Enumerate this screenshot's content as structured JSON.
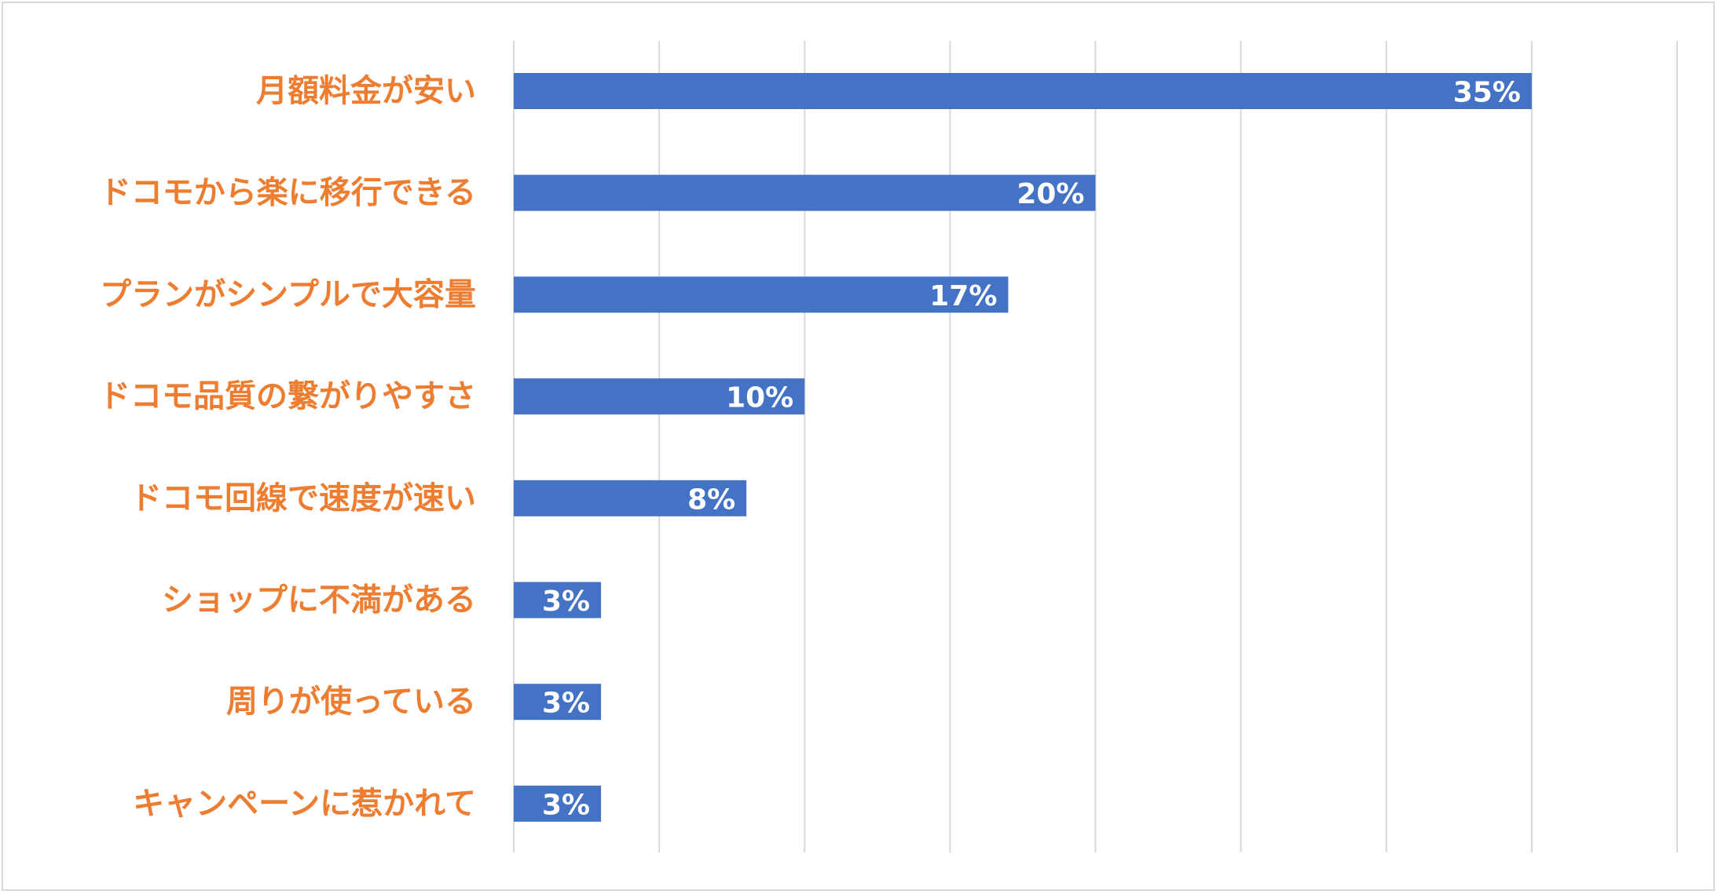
{
  "chart_data": {
    "type": "bar",
    "orientation": "horizontal",
    "categories": [
      "月額料金が安い",
      "ドコモから楽に移行できる",
      "プランがシンプルで大容量",
      "ドコモ品質の繋がりやすさ",
      "ドコモ回線で速度が速い",
      "ショップに不満がある",
      "周りが使っている",
      "キャンペーンに惹かれて"
    ],
    "values": [
      35,
      20,
      17,
      10,
      8,
      3,
      3,
      3
    ],
    "data_labels": [
      "35%",
      "20%",
      "17%",
      "10%",
      "8%",
      "3%",
      "3%",
      "3%"
    ],
    "xlim": [
      0,
      40
    ],
    "x_gridline_step": 5,
    "grid": true,
    "legend": "none",
    "colors": {
      "bar": "#4472c4",
      "category_label": "#ed7d31",
      "data_label": "#ffffff",
      "gridline": "#d9d9d9",
      "border": "#d9d9d9"
    }
  }
}
